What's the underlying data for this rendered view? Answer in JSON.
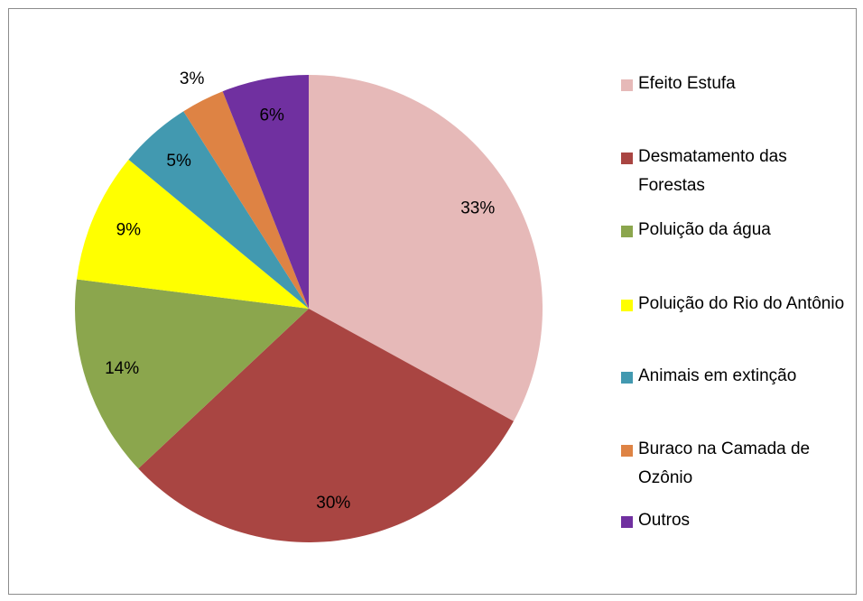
{
  "chart_data": {
    "type": "pie",
    "categories": [
      "Efeito Estufa",
      "Desmatamento das Forestas",
      "Poluição da água",
      "Poluição do Rio do Antônio",
      "Animais em extinção",
      "Buraco na Camada de Ozônio",
      "Outros"
    ],
    "values": [
      33,
      30,
      14,
      9,
      5,
      3,
      6
    ],
    "value_labels": [
      "33%",
      "30%",
      "14%",
      "9%",
      "5%",
      "3%",
      "6%"
    ],
    "colors": [
      "#e6b9b8",
      "#a94542",
      "#8ba64d",
      "#ffff00",
      "#4299b0",
      "#de8344",
      "#7030a0"
    ],
    "legend": "right"
  }
}
